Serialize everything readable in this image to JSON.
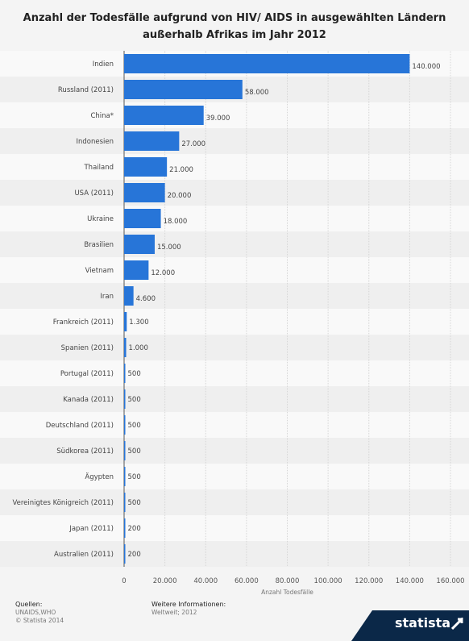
{
  "header": {
    "title_line1": "Anzahl der Todesfälle aufgrund von HIV/ AIDS in ausgewählten Ländern",
    "title_line2": "außerhalb Afrikas im Jahr 2012"
  },
  "footer": {
    "sources_heading": "Quellen:",
    "sources": "UNAIDS,WHO",
    "copyright": "© Statista 2014",
    "info_heading": "Weitere Informationen:",
    "info": "Weltweit; 2012",
    "brand": "statista"
  },
  "colors": {
    "bar": "#2775d8",
    "stripe": "#efefef",
    "background": "#f4f4f4"
  },
  "chart_data": {
    "type": "bar",
    "orientation": "horizontal",
    "xlabel": "Anzahl Todesfälle",
    "xlim": [
      0,
      160000
    ],
    "xticks": [
      "0",
      "20.000",
      "40.000",
      "60.000",
      "80.000",
      "100.000",
      "120.000",
      "140.000",
      "160.000"
    ],
    "grid": true,
    "categories": [
      "Indien",
      "Russland (2011)",
      "China*",
      "Indonesien",
      "Thailand",
      "USA (2011)",
      "Ukraine",
      "Brasilien",
      "Vietnam",
      "Iran",
      "Frankreich (2011)",
      "Spanien (2011)",
      "Portugal (2011)",
      "Kanada (2011)",
      "Deutschland (2011)",
      "Südkorea (2011)",
      "Ägypten",
      "Vereinigtes Königreich (2011)",
      "Japan (2011)",
      "Australien (2011)"
    ],
    "values": [
      140000,
      58000,
      39000,
      27000,
      21000,
      20000,
      18000,
      15000,
      12000,
      4600,
      1300,
      1000,
      500,
      500,
      500,
      500,
      500,
      500,
      200,
      200
    ],
    "value_labels": [
      "140.000",
      "58.000",
      "39.000",
      "27.000",
      "21.000",
      "20.000",
      "18.000",
      "15.000",
      "12.000",
      "4.600",
      "1.300",
      "1.000",
      "500",
      "500",
      "500",
      "500",
      "500",
      "500",
      "200",
      "200"
    ]
  }
}
